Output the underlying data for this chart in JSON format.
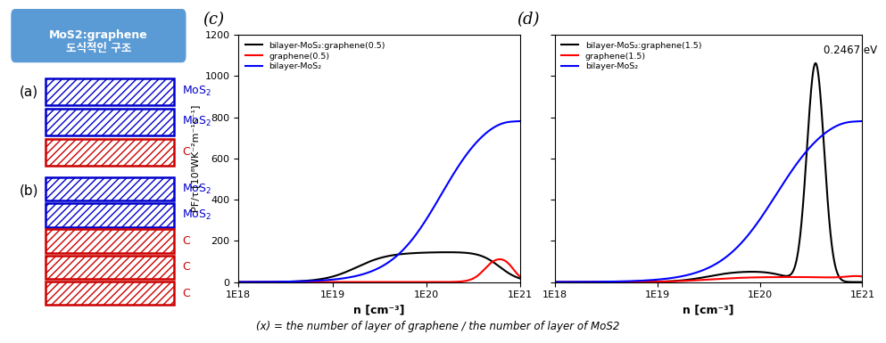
{
  "title_box_bg": "#5b9bd5",
  "mos2_color": "#0000cc",
  "c_color": "#cc0000",
  "c_label": "(c)",
  "d_label": "(d)",
  "ylabel": "PF/τ [10⁸WK⁻²m⁻¹s⁻¹]",
  "xlabel": "n [cm⁻³]",
  "footnote": "(x) = the number of layer of graphene / the number of layer of MoS2",
  "ylim": [
    0,
    1200
  ],
  "yticks": [
    0,
    200,
    400,
    600,
    800,
    1000,
    1200
  ],
  "annotation_d": "0.2467 eV",
  "legend_c": [
    {
      "label": "bilayer-MoS₂:graphene(0.5)",
      "color": "black"
    },
    {
      "label": "graphene(0.5)",
      "color": "red"
    },
    {
      "label": "bilayer-MoS₂",
      "color": "blue"
    }
  ],
  "legend_d": [
    {
      "label": "bilayer-MoS₂:graphene(1.5)",
      "color": "black"
    },
    {
      "label": "graphene(1.5)",
      "color": "red"
    },
    {
      "label": "bilayer-MoS₂",
      "color": "blue"
    }
  ]
}
